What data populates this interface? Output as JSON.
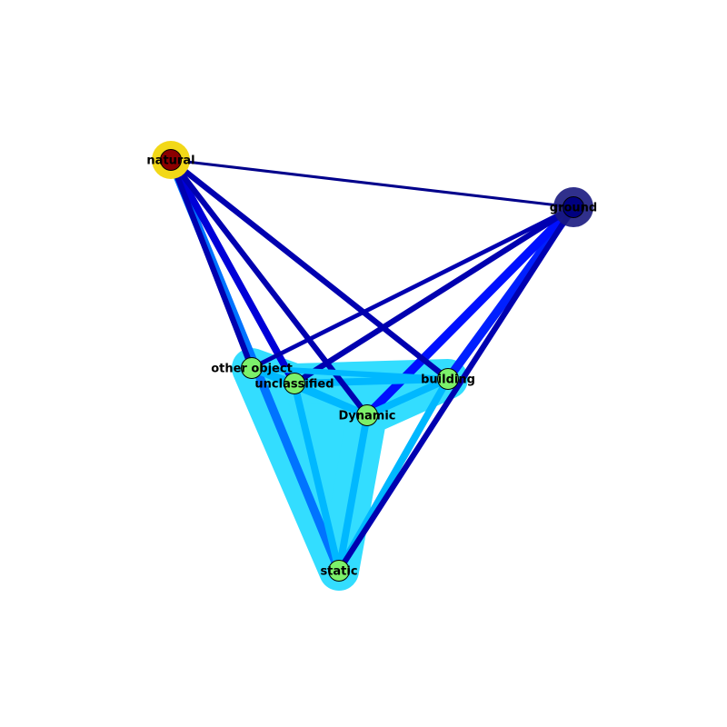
{
  "graph": {
    "nodes": [
      {
        "id": "natural",
        "label": "natural",
        "fill": "#8b0000",
        "halo": "#f2d818"
      },
      {
        "id": "ground",
        "label": "ground",
        "fill": "#000080",
        "halo": "#1a1a80"
      },
      {
        "id": "other_object",
        "label": "other object",
        "fill": "#7cf06a",
        "halo": "#33ddff"
      },
      {
        "id": "unclassified",
        "label": "unclassified",
        "fill": "#7cf06a",
        "halo": "#33ddff"
      },
      {
        "id": "building",
        "label": "building",
        "fill": "#7cf06a",
        "halo": "#33ddff"
      },
      {
        "id": "dynamic",
        "label": "Dynamic",
        "fill": "#7cf06a",
        "halo": "#33ddff"
      },
      {
        "id": "static",
        "label": "static",
        "fill": "#7cf06a",
        "halo": "#33ddff"
      }
    ],
    "edges": [
      {
        "source": "natural",
        "target": "ground",
        "color": "#00008b",
        "weight": 1
      },
      {
        "source": "natural",
        "target": "other_object",
        "color": "#0000b0",
        "weight": 3
      },
      {
        "source": "natural",
        "target": "unclassified",
        "color": "#0000d8",
        "weight": 4
      },
      {
        "source": "natural",
        "target": "building",
        "color": "#0000b0",
        "weight": 3
      },
      {
        "source": "natural",
        "target": "dynamic",
        "color": "#0000b0",
        "weight": 3
      },
      {
        "source": "natural",
        "target": "static",
        "color": "#0073ff",
        "weight": 5
      },
      {
        "source": "ground",
        "target": "other_object",
        "color": "#0000b0",
        "weight": 2
      },
      {
        "source": "ground",
        "target": "unclassified",
        "color": "#0000b0",
        "weight": 3
      },
      {
        "source": "ground",
        "target": "building",
        "color": "#0020ff",
        "weight": 5
      },
      {
        "source": "ground",
        "target": "dynamic",
        "color": "#0010ff",
        "weight": 5
      },
      {
        "source": "ground",
        "target": "static",
        "color": "#0000b0",
        "weight": 3
      },
      {
        "source": "other_object",
        "target": "unclassified",
        "color": "#00b8ff",
        "weight": 4
      },
      {
        "source": "other_object",
        "target": "building",
        "color": "#00b8ff",
        "weight": 3
      },
      {
        "source": "other_object",
        "target": "dynamic",
        "color": "#00b8ff",
        "weight": 4
      },
      {
        "source": "other_object",
        "target": "static",
        "color": "#33ddff",
        "weight": 6
      },
      {
        "source": "unclassified",
        "target": "building",
        "color": "#00b8ff",
        "weight": 4
      },
      {
        "source": "unclassified",
        "target": "dynamic",
        "color": "#00b8ff",
        "weight": 4
      },
      {
        "source": "unclassified",
        "target": "static",
        "color": "#00b8ff",
        "weight": 4
      },
      {
        "source": "building",
        "target": "dynamic",
        "color": "#00b8ff",
        "weight": 4
      },
      {
        "source": "building",
        "target": "static",
        "color": "#00b8ff",
        "weight": 4
      },
      {
        "source": "dynamic",
        "target": "static",
        "color": "#00b8ff",
        "weight": 4
      }
    ],
    "halo_clusters": [
      {
        "color": "#33ddff",
        "members": [
          "other_object",
          "unclassified",
          "building",
          "dynamic",
          "static"
        ]
      }
    ]
  }
}
